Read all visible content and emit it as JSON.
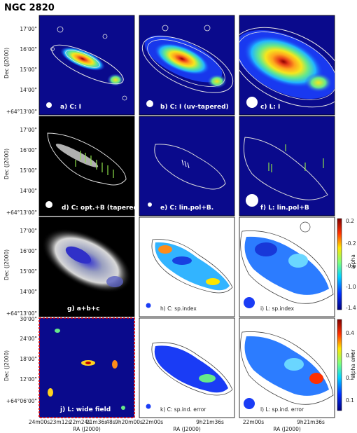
{
  "title": "NGC 2820",
  "dec_axis_label": "Dec (J2000)",
  "ra_axis_label": "RA (J2000)",
  "dec_ticks_top": [
    "17'00\"",
    "16'00\"",
    "15'00\"",
    "14'00\"",
    "+64°13'00\""
  ],
  "dec_ticks_bottom": [
    "30'00\"",
    "24'00\"",
    "18'00\"",
    "12'00\"",
    "+64°06'00\""
  ],
  "ra_ticks_wide": [
    "24m00s",
    "23m12s",
    "22m24s",
    "21m36s",
    "48s",
    "9h20m00s"
  ],
  "ra_ticks_narrow": [
    "22m00s",
    "9h21m36s"
  ],
  "panels": [
    {
      "label": "a) C: I"
    },
    {
      "label": "b) C: I (uv-tapered)"
    },
    {
      "label": "c) L: I"
    },
    {
      "label": "d) C: opt.+B (tapered)"
    },
    {
      "label": "e) C: lin.pol+B."
    },
    {
      "label": "f) L: lin.pol+B"
    },
    {
      "label": "g) a+b+c"
    },
    {
      "label": "h) C: sp.index"
    },
    {
      "label": "i) L: sp.index"
    },
    {
      "label": "j) L: wide field"
    },
    {
      "label": "k) C: sp.ind. error"
    },
    {
      "label": "l) L: sp.ind. error"
    }
  ],
  "colorbar_alpha": {
    "label": "alpha",
    "ticks": [
      "0.2",
      "-0.2",
      "-0.6",
      "-1.0",
      "-1.4"
    ]
  },
  "colorbar_error": {
    "label": "alpha error",
    "ticks": [
      "0.4",
      "0.3",
      "0.2",
      "0.1"
    ]
  },
  "colors": {
    "background": "#0a0a8c",
    "contour": "#e6e6e6",
    "wide_frame": "#e00000"
  }
}
